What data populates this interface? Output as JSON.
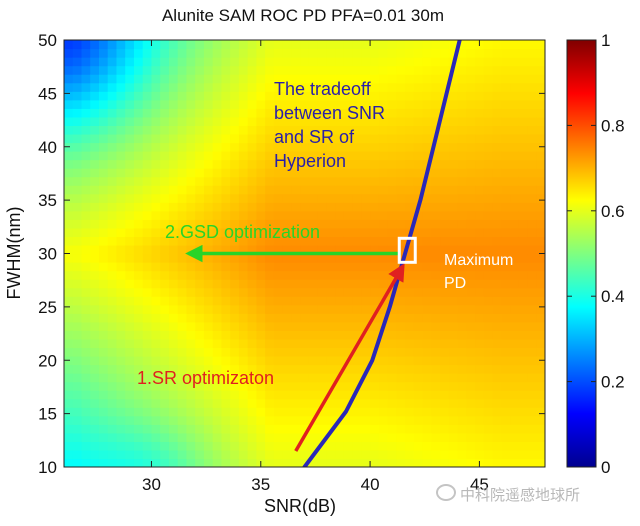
{
  "chart_data": {
    "type": "heatmap",
    "title": "Alunite SAM ROC PD PFA=0.01 30m",
    "xlabel": "SNR(dB)",
    "ylabel": "FWHM(nm)",
    "xlim": [
      26,
      48
    ],
    "ylim": [
      10,
      50
    ],
    "xticks": [
      30,
      35,
      40,
      45
    ],
    "yticks": [
      10,
      15,
      20,
      25,
      30,
      35,
      40,
      45,
      50
    ],
    "colorbar": {
      "range": [
        0,
        1
      ],
      "ticks": [
        "0",
        "0.2",
        "0.4",
        "0.6",
        "0.8",
        "1"
      ],
      "colormap": "jet"
    },
    "tradeoff_curve": {
      "color": "#2a28b8",
      "points": [
        [
          37,
          10
        ],
        [
          38.9,
          15.2
        ],
        [
          40.1,
          20
        ],
        [
          40.9,
          25
        ],
        [
          41.6,
          30
        ],
        [
          42.3,
          35
        ],
        [
          42.9,
          40
        ],
        [
          43.5,
          45
        ],
        [
          44.1,
          50
        ]
      ]
    },
    "annotations": {
      "tradeoff": {
        "lines": [
          "The tradeoff",
          "between SNR",
          "and SR of",
          "Hyperion"
        ],
        "color": "#2a1fa8"
      },
      "sr_opt": {
        "text": "1.SR optimizaton",
        "color": "#e02020"
      },
      "gsd_opt": {
        "text": "2.GSD optimization",
        "color": "#28d428"
      },
      "max_pd": {
        "lines": [
          "Maximum",
          "PD"
        ],
        "color": "#ffffff"
      }
    },
    "optimum_marker": {
      "x": 41.7,
      "y": 30.3
    },
    "sr_arrow": {
      "from": [
        36.6,
        11.5
      ],
      "to": [
        41.5,
        28.8
      ],
      "color": "#e02020"
    },
    "gsd_arrow": {
      "from": [
        41.4,
        30
      ],
      "to": [
        31.7,
        30
      ],
      "color": "#28d428"
    },
    "grid": false
  },
  "watermark": "中科院遥感地球所"
}
